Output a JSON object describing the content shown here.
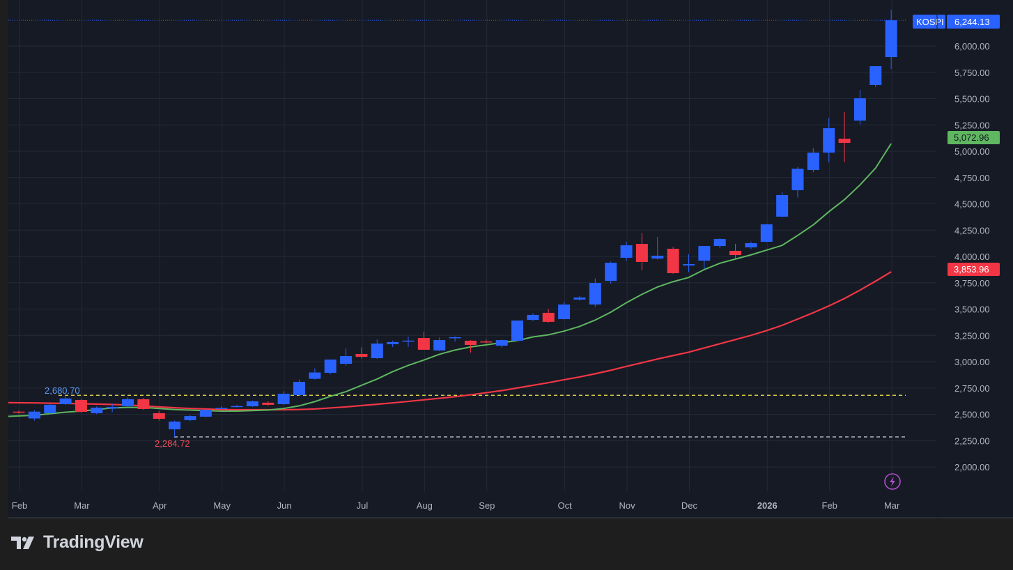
{
  "chart_data": {
    "type": "candlestick",
    "symbol": "KOSPI",
    "last_price_label": "6,244.13",
    "ma_fast_label": "5,072.96",
    "ma_slow_label": "3,853.96",
    "high_marker_label": "2,680.70",
    "low_marker_label": "2,284.72",
    "high_marker_value": 2680.7,
    "low_marker_value": 2284.72,
    "last_price": 6244.13,
    "ylim": [
      1800,
      6400
    ],
    "y_ticks": [
      2000,
      2250,
      2500,
      2750,
      3000,
      3250,
      3500,
      3750,
      4000,
      4250,
      4500,
      4750,
      5000,
      5250,
      5500,
      5750,
      6000
    ],
    "y_tick_labels": [
      "2,000.00",
      "2,250.00",
      "2,500.00",
      "2,750.00",
      "3,000.00",
      "3,250.00",
      "3,500.00",
      "3,750.00",
      "4,000.00",
      "4,250.00",
      "4,500.00",
      "4,750.00",
      "5,000.00",
      "5,250.00",
      "5,500.00",
      "5,750.00",
      "6,000.00"
    ],
    "x_ticks": [
      {
        "label": "Feb",
        "week": 1
      },
      {
        "label": "Mar",
        "week": 5
      },
      {
        "label": "Apr",
        "week": 10
      },
      {
        "label": "May",
        "week": 14
      },
      {
        "label": "Jun",
        "week": 18
      },
      {
        "label": "Jul",
        "week": 23
      },
      {
        "label": "Aug",
        "week": 27
      },
      {
        "label": "Sep",
        "week": 31
      },
      {
        "label": "Oct",
        "week": 36
      },
      {
        "label": "Nov",
        "week": 40
      },
      {
        "label": "Dec",
        "week": 44
      },
      {
        "label": "2026",
        "week": 49,
        "bold": true
      },
      {
        "label": "Feb",
        "week": 53
      },
      {
        "label": "Mar",
        "week": 57
      }
    ],
    "grid": true,
    "colors": {
      "up": "#2962ff",
      "down": "#f23645",
      "ma_fast": "#5fb760",
      "ma_slow": "#f23645",
      "high_line": "#f5e94b",
      "low_line": "#d1d4dc",
      "last_line": "#2962ff",
      "bg": "#161a25",
      "grid": "#242938"
    },
    "candles": [
      [
        2525,
        2535,
        2505,
        2515
      ],
      [
        2460,
        2540,
        2440,
        2525
      ],
      [
        2510,
        2600,
        2500,
        2590
      ],
      [
        2596,
        2681,
        2590,
        2650
      ],
      [
        2636,
        2645,
        2515,
        2523
      ],
      [
        2510,
        2575,
        2500,
        2563
      ],
      [
        2555,
        2600,
        2520,
        2570
      ],
      [
        2576,
        2660,
        2570,
        2643
      ],
      [
        2643,
        2655,
        2540,
        2550
      ],
      [
        2510,
        2530,
        2440,
        2457
      ],
      [
        2357,
        2440,
        2285,
        2430
      ],
      [
        2444,
        2490,
        2435,
        2483
      ],
      [
        2477,
        2550,
        2470,
        2543
      ],
      [
        2556,
        2575,
        2545,
        2560
      ],
      [
        2575,
        2590,
        2565,
        2578
      ],
      [
        2576,
        2630,
        2570,
        2623
      ],
      [
        2610,
        2625,
        2580,
        2590
      ],
      [
        2596,
        2720,
        2590,
        2695
      ],
      [
        2682,
        2830,
        2675,
        2808
      ],
      [
        2837,
        2935,
        2830,
        2897
      ],
      [
        2894,
        3020,
        2880,
        3020
      ],
      [
        2980,
        3126,
        2960,
        3053
      ],
      [
        3073,
        3135,
        3030,
        3046
      ],
      [
        3033,
        3210,
        3025,
        3172
      ],
      [
        3166,
        3200,
        3140,
        3186
      ],
      [
        3192,
        3238,
        3140,
        3200
      ],
      [
        3225,
        3285,
        3113,
        3113
      ],
      [
        3106,
        3230,
        3100,
        3205
      ],
      [
        3225,
        3240,
        3190,
        3232
      ],
      [
        3199,
        3205,
        3085,
        3159
      ],
      [
        3192,
        3210,
        3170,
        3185
      ],
      [
        3152,
        3210,
        3135,
        3205
      ],
      [
        3199,
        3391,
        3195,
        3391
      ],
      [
        3397,
        3460,
        3385,
        3444
      ],
      [
        3464,
        3500,
        3370,
        3378
      ],
      [
        3404,
        3570,
        3400,
        3543
      ],
      [
        3590,
        3625,
        3580,
        3610
      ],
      [
        3543,
        3790,
        3520,
        3748
      ],
      [
        3768,
        3950,
        3740,
        3940
      ],
      [
        3987,
        4140,
        3960,
        4106
      ],
      [
        4119,
        4225,
        3868,
        3947
      ],
      [
        3980,
        4185,
        3970,
        4007
      ],
      [
        4073,
        4090,
        3835,
        3841
      ],
      [
        3914,
        4020,
        3850,
        3927
      ],
      [
        3960,
        4099,
        3880,
        4099
      ],
      [
        4099,
        4175,
        4080,
        4166
      ],
      [
        4053,
        4120,
        3980,
        4013
      ],
      [
        4086,
        4140,
        4070,
        4126
      ],
      [
        4139,
        4310,
        4135,
        4305
      ],
      [
        4378,
        4610,
        4370,
        4583
      ],
      [
        4629,
        4850,
        4560,
        4834
      ],
      [
        4821,
        5030,
        4800,
        4987
      ],
      [
        4987,
        5318,
        4894,
        5219
      ],
      [
        5119,
        5371,
        4894,
        5079
      ],
      [
        5291,
        5583,
        5255,
        5503
      ],
      [
        5629,
        5808,
        5610,
        5808
      ],
      [
        5894,
        6344,
        5781,
        6244.13
      ]
    ],
    "ma_fast": [
      2480,
      2490,
      2505,
      2520,
      2530,
      2545,
      2560,
      2565,
      2565,
      2555,
      2545,
      2540,
      2535,
      2530,
      2530,
      2535,
      2540,
      2555,
      2580,
      2620,
      2670,
      2715,
      2775,
      2835,
      2905,
      2965,
      3015,
      3070,
      3110,
      3140,
      3160,
      3180,
      3200,
      3235,
      3255,
      3290,
      3335,
      3395,
      3470,
      3560,
      3640,
      3710,
      3760,
      3800,
      3875,
      3935,
      3975,
      4015,
      4060,
      4105,
      4200,
      4300,
      4425,
      4540,
      4680,
      4840,
      5072.96
    ],
    "ma_slow": [
      2610,
      2608,
      2605,
      2603,
      2600,
      2597,
      2593,
      2588,
      2580,
      2570,
      2562,
      2555,
      2550,
      2545,
      2543,
      2543,
      2543,
      2543,
      2545,
      2550,
      2560,
      2570,
      2583,
      2595,
      2608,
      2622,
      2637,
      2652,
      2667,
      2685,
      2705,
      2725,
      2750,
      2775,
      2800,
      2828,
      2855,
      2885,
      2918,
      2955,
      2990,
      3025,
      3058,
      3090,
      3130,
      3170,
      3210,
      3250,
      3295,
      3345,
      3405,
      3465,
      3530,
      3600,
      3680,
      3765,
      3853.96
    ]
  },
  "branding": {
    "logo_text": "TradingView"
  }
}
